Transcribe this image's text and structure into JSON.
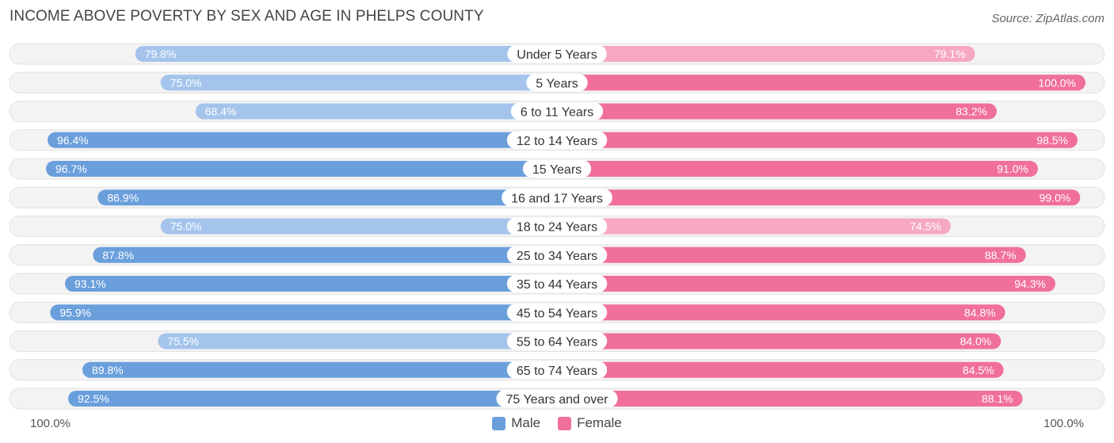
{
  "chart_data": {
    "type": "bar",
    "orientation": "horizontal-diverging",
    "title": "INCOME ABOVE POVERTY BY SEX AND AGE IN PHELPS COUNTY",
    "source": "Source: ZipAtlas.com",
    "categories": [
      "Under 5 Years",
      "5 Years",
      "6 to 11 Years",
      "12 to 14 Years",
      "15 Years",
      "16 and 17 Years",
      "18 to 24 Years",
      "25 to 34 Years",
      "35 to 44 Years",
      "45 to 54 Years",
      "55 to 64 Years",
      "65 to 74 Years",
      "75 Years and over"
    ],
    "series": [
      {
        "name": "Male",
        "values": [
          79.8,
          75.0,
          68.4,
          96.4,
          96.7,
          86.9,
          75.0,
          87.8,
          93.1,
          95.9,
          75.5,
          89.8,
          92.5
        ],
        "labels": [
          "79.8%",
          "75.0%",
          "68.4%",
          "96.4%",
          "96.7%",
          "86.9%",
          "75.0%",
          "87.8%",
          "93.1%",
          "95.9%",
          "75.5%",
          "89.8%",
          "92.5%"
        ]
      },
      {
        "name": "Female",
        "values": [
          79.1,
          100.0,
          83.2,
          98.5,
          91.0,
          99.0,
          74.5,
          88.7,
          94.3,
          84.8,
          84.0,
          84.5,
          88.1
        ],
        "labels": [
          "79.1%",
          "100.0%",
          "83.2%",
          "98.5%",
          "91.0%",
          "99.0%",
          "74.5%",
          "88.7%",
          "94.3%",
          "84.8%",
          "84.0%",
          "84.5%",
          "88.1%"
        ]
      }
    ],
    "xlim": [
      0,
      100
    ],
    "axis_left_label": "100.0%",
    "axis_right_label": "100.0%",
    "colors": {
      "male_strong": "#6a9fdc",
      "male_light": "#a4c4ec",
      "female_strong": "#f07099",
      "female_light": "#f6a8c3",
      "track": "#efefef"
    }
  }
}
